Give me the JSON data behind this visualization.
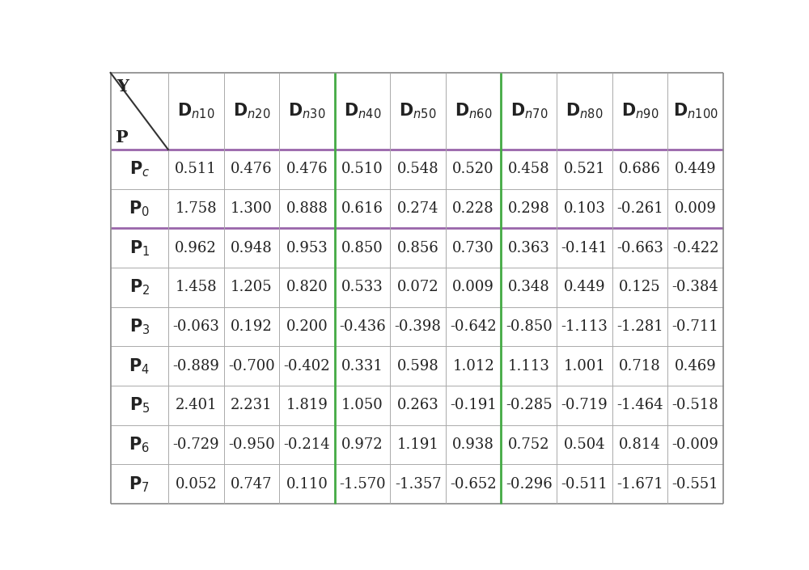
{
  "col_headers": [
    "D_{n10}",
    "D_{n20}",
    "D_{n30}",
    "D_{n40}",
    "D_{n50}",
    "D_{n60}",
    "D_{n70}",
    "D_{n80}",
    "D_{n90}",
    "D_{n100}"
  ],
  "row_headers": [
    "P_c",
    "P_0",
    "P_1",
    "P_2",
    "P_3",
    "P_4",
    "P_5",
    "P_6",
    "P_7"
  ],
  "data": [
    [
      0.511,
      0.476,
      0.476,
      0.51,
      0.548,
      0.52,
      0.458,
      0.521,
      0.686,
      0.449
    ],
    [
      1.758,
      1.3,
      0.888,
      0.616,
      0.274,
      0.228,
      0.298,
      0.103,
      -0.261,
      0.009
    ],
    [
      0.962,
      0.948,
      0.953,
      0.85,
      0.856,
      0.73,
      0.363,
      -0.141,
      -0.663,
      -0.422
    ],
    [
      1.458,
      1.205,
      0.82,
      0.533,
      0.072,
      0.009,
      0.348,
      0.449,
      0.125,
      -0.384
    ],
    [
      -0.063,
      0.192,
      0.2,
      -0.436,
      -0.398,
      -0.642,
      -0.85,
      -1.113,
      -1.281,
      -0.711
    ],
    [
      -0.889,
      -0.7,
      -0.402,
      0.331,
      0.598,
      1.012,
      1.113,
      1.001,
      0.718,
      0.469
    ],
    [
      2.401,
      2.231,
      1.819,
      1.05,
      0.263,
      -0.191,
      -0.285,
      -0.719,
      -1.464,
      -0.518
    ],
    [
      -0.729,
      -0.95,
      -0.214,
      0.972,
      1.191,
      0.938,
      0.752,
      0.504,
      0.814,
      -0.009
    ],
    [
      0.052,
      0.747,
      0.11,
      -1.57,
      -1.357,
      -0.652,
      -0.296,
      -0.511,
      -1.671,
      -0.551
    ]
  ],
  "bg_color": "#ffffff",
  "border_thin": "#aaaaaa",
  "border_purple": "#9966aa",
  "border_green": "#44aa44",
  "border_outer": "#888888",
  "lw_thin": 0.7,
  "lw_thick": 2.0,
  "lw_outer": 1.2,
  "header_fontsize": 15,
  "cell_fontsize": 13,
  "row_label_fontsize": 15,
  "purple_hlines": [
    1,
    3
  ],
  "green_vcols": [
    4,
    7
  ],
  "text_color": "#222222"
}
